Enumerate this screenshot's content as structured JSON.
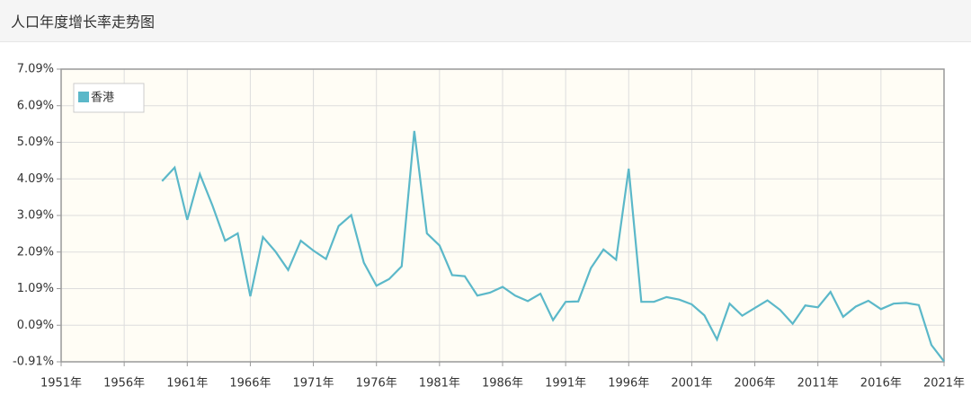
{
  "chart_data": {
    "type": "line",
    "title": "人口年度增长率走势图",
    "x": [
      1959,
      1960,
      1961,
      1962,
      1963,
      1964,
      1965,
      1966,
      1967,
      1968,
      1969,
      1970,
      1971,
      1972,
      1973,
      1974,
      1975,
      1976,
      1977,
      1978,
      1979,
      1980,
      1981,
      1982,
      1983,
      1984,
      1985,
      1986,
      1987,
      1988,
      1989,
      1990,
      1991,
      1992,
      1993,
      1994,
      1995,
      1996,
      1997,
      1998,
      1999,
      2000,
      2001,
      2002,
      2003,
      2004,
      2005,
      2006,
      2007,
      2008,
      2009,
      2010,
      2011,
      2012,
      2013,
      2014,
      2015,
      2016,
      2017,
      2018,
      2019,
      2020,
      2021
    ],
    "series": [
      {
        "name": "香港",
        "color": "#5bb8c9",
        "values": [
          4.03,
          4.4,
          2.97,
          4.22,
          3.36,
          2.4,
          2.6,
          0.88,
          2.5,
          2.1,
          1.6,
          2.4,
          2.13,
          1.9,
          2.8,
          3.1,
          1.8,
          1.17,
          1.35,
          1.7,
          5.4,
          2.6,
          2.27,
          1.46,
          1.43,
          0.9,
          0.98,
          1.14,
          0.9,
          0.75,
          0.95,
          0.23,
          0.73,
          0.74,
          1.65,
          2.16,
          1.88,
          4.37,
          0.73,
          0.73,
          0.86,
          0.79,
          0.66,
          0.36,
          -0.3,
          0.68,
          0.35,
          0.56,
          0.77,
          0.51,
          0.13,
          0.63,
          0.58,
          1.0,
          0.32,
          0.6,
          0.76,
          0.53,
          0.68,
          0.7,
          0.64,
          -0.45,
          -0.9
        ]
      }
    ],
    "xlim": [
      1951,
      2021
    ],
    "xticks": [
      {
        "value": 1951,
        "label": "1951年"
      },
      {
        "value": 1956,
        "label": "1956年"
      },
      {
        "value": 1961,
        "label": "1961年"
      },
      {
        "value": 1966,
        "label": "1966年"
      },
      {
        "value": 1971,
        "label": "1971年"
      },
      {
        "value": 1976,
        "label": "1976年"
      },
      {
        "value": 1981,
        "label": "1981年"
      },
      {
        "value": 1986,
        "label": "1986年"
      },
      {
        "value": 1991,
        "label": "1991年"
      },
      {
        "value": 1996,
        "label": "1996年"
      },
      {
        "value": 2001,
        "label": "2001年"
      },
      {
        "value": 2006,
        "label": "2006年"
      },
      {
        "value": 2011,
        "label": "2011年"
      },
      {
        "value": 2016,
        "label": "2016年"
      },
      {
        "value": 2021,
        "label": "2021年"
      }
    ],
    "ylim": [
      -0.91,
      7.09
    ],
    "yticks": [
      {
        "value": -0.91,
        "label": "-0.91%"
      },
      {
        "value": 0.09,
        "label": "0.09%"
      },
      {
        "value": 1.09,
        "label": "1.09%"
      },
      {
        "value": 2.09,
        "label": "2.09%"
      },
      {
        "value": 3.09,
        "label": "3.09%"
      },
      {
        "value": 4.09,
        "label": "4.09%"
      },
      {
        "value": 5.09,
        "label": "5.09%"
      },
      {
        "value": 6.09,
        "label": "6.09%"
      },
      {
        "value": 7.09,
        "label": "7.09%"
      }
    ],
    "grid": true,
    "legend": "upper left"
  }
}
